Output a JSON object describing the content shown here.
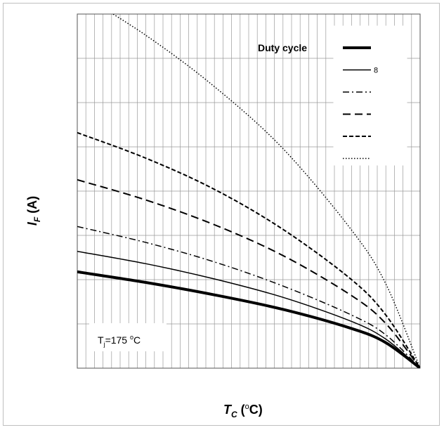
{
  "chart_data": {
    "type": "line",
    "xlabel_main": "T",
    "xlabel_sub": "C",
    "xlabel_unit": " (",
    "xlabel_sup": "o",
    "xlabel_tail": "C)",
    "ylabel_main": "I",
    "ylabel_sub": "F",
    "ylabel_tail": " (A)",
    "annotation_main": "T",
    "annotation_sub": "j",
    "annotation_mid": "=175 ",
    "annotation_sup": "o",
    "annotation_tail": "C",
    "xlim": [
      0,
      1
    ],
    "ylim": [
      0,
      1
    ],
    "grid": true,
    "legend_position": "top-right",
    "legend_title": "Duty cycle",
    "legend_entries": [
      "",
      "8",
      "",
      "",
      "",
      ""
    ],
    "series": [
      {
        "style": "thick-solid",
        "x": [
          0,
          0.2,
          0.4,
          0.6,
          0.8,
          0.9,
          1.0
        ],
        "y": [
          0.272,
          0.242,
          0.207,
          0.166,
          0.112,
          0.072,
          0
        ]
      },
      {
        "style": "solid",
        "x": [
          0,
          0.2,
          0.4,
          0.6,
          0.8,
          0.9,
          1.0
        ],
        "y": [
          0.33,
          0.295,
          0.252,
          0.2,
          0.132,
          0.082,
          0
        ]
      },
      {
        "style": "dash-dot",
        "x": [
          0,
          0.2,
          0.4,
          0.6,
          0.8,
          0.9,
          1.0
        ],
        "y": [
          0.4,
          0.355,
          0.3,
          0.232,
          0.15,
          0.094,
          0
        ]
      },
      {
        "style": "long-dash",
        "x": [
          0,
          0.2,
          0.4,
          0.6,
          0.8,
          0.9,
          1.0
        ],
        "y": [
          0.532,
          0.475,
          0.405,
          0.318,
          0.205,
          0.126,
          0
        ]
      },
      {
        "style": "short-dash",
        "x": [
          0,
          0.2,
          0.4,
          0.6,
          0.8,
          0.9,
          1.0
        ],
        "y": [
          0.665,
          0.593,
          0.505,
          0.392,
          0.25,
          0.15,
          0
        ]
      },
      {
        "style": "dotted",
        "x": [
          0,
          0.2,
          0.4,
          0.6,
          0.8,
          0.9,
          1.0
        ],
        "y": [
          1.062,
          0.94,
          0.795,
          0.62,
          0.39,
          0.238,
          0
        ]
      }
    ]
  },
  "colors": {
    "grid": "#9a9a9a",
    "line": "#000000",
    "frame": "#bfbfbf"
  }
}
